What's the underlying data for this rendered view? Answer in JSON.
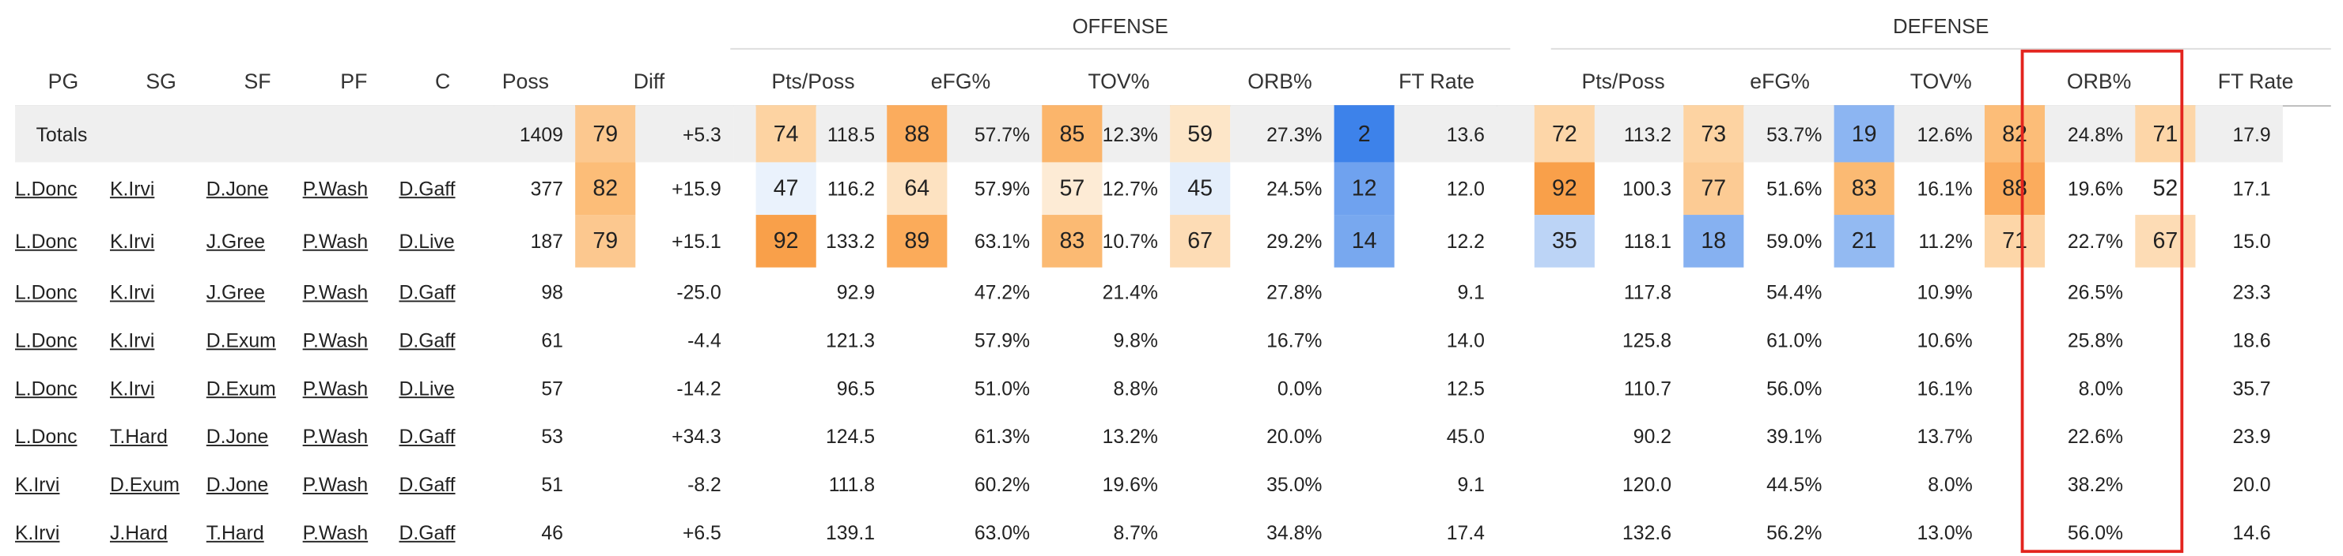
{
  "groups": {
    "offense": "OFFENSE",
    "defense": "DEFENSE"
  },
  "headers": [
    "PG",
    "SG",
    "SF",
    "PF",
    "C",
    "Poss",
    "Diff",
    "Pts/Poss",
    "eFG%",
    "TOV%",
    "ORB%",
    "FT Rate",
    "Pts/Poss",
    "eFG%",
    "TOV%",
    "ORB%",
    "FT Rate"
  ],
  "totals": {
    "label": "Totals",
    "poss": "1409",
    "diff": {
      "pct": "79",
      "val": "+5.3",
      "color": "#fcc88f"
    },
    "off": [
      {
        "pct": "74",
        "val": "118.5",
        "color": "#fdd3a2"
      },
      {
        "pct": "88",
        "val": "57.7%",
        "color": "#fbac5d"
      },
      {
        "pct": "85",
        "val": "12.3%",
        "color": "#fbb56b"
      },
      {
        "pct": "59",
        "val": "27.3%",
        "color": "#fde6c8"
      },
      {
        "pct": "2",
        "val": "13.6",
        "color": "#3d82ea"
      }
    ],
    "def": [
      {
        "pct": "72",
        "val": "113.2",
        "color": "#fdd6a8"
      },
      {
        "pct": "73",
        "val": "53.7%",
        "color": "#fdd3a2"
      },
      {
        "pct": "19",
        "val": "12.6%",
        "color": "#8cb5f2"
      },
      {
        "pct": "82",
        "val": "24.8%",
        "color": "#fcbd78"
      },
      {
        "pct": "71",
        "val": "17.9",
        "color": "#fdd6a8"
      }
    ]
  },
  "rows": [
    {
      "pg": "L.Donc",
      "sg": "K.Irvi",
      "sf": "D.Jone",
      "pf": "P.Wash",
      "c": "D.Gaff",
      "poss": "377",
      "diff": {
        "pct": "82",
        "val": "+15.9",
        "color": "#fcbd78"
      },
      "off": [
        {
          "pct": "47",
          "val": "116.2",
          "color": "#eaf2fc"
        },
        {
          "pct": "64",
          "val": "57.9%",
          "color": "#fde2c1"
        },
        {
          "pct": "57",
          "val": "12.7%",
          "color": "#fdebd5"
        },
        {
          "pct": "45",
          "val": "24.5%",
          "color": "#e4eefb"
        },
        {
          "pct": "12",
          "val": "12.0",
          "color": "#6fa2ef"
        }
      ],
      "def": [
        {
          "pct": "92",
          "val": "100.3",
          "color": "#f9a04a"
        },
        {
          "pct": "77",
          "val": "51.6%",
          "color": "#fccb94"
        },
        {
          "pct": "83",
          "val": "16.1%",
          "color": "#fbba73"
        },
        {
          "pct": "88",
          "val": "19.6%",
          "color": "#fbac5d"
        },
        {
          "pct": "52",
          "val": "17.1",
          "color": "#ffffff"
        }
      ]
    },
    {
      "pg": "L.Donc",
      "sg": "K.Irvi",
      "sf": "J.Gree",
      "pf": "P.Wash",
      "c": "D.Live",
      "poss": "187",
      "diff": {
        "pct": "79",
        "val": "+15.1",
        "color": "#fcc88f"
      },
      "off": [
        {
          "pct": "92",
          "val": "133.2",
          "color": "#f9a04a"
        },
        {
          "pct": "89",
          "val": "63.1%",
          "color": "#fbab5a"
        },
        {
          "pct": "83",
          "val": "10.7%",
          "color": "#fbba73"
        },
        {
          "pct": "67",
          "val": "29.2%",
          "color": "#fddcb5"
        },
        {
          "pct": "14",
          "val": "12.2",
          "color": "#78a8ef"
        }
      ],
      "def": [
        {
          "pct": "35",
          "val": "118.1",
          "color": "#bcd4f6"
        },
        {
          "pct": "18",
          "val": "59.0%",
          "color": "#86b1f1"
        },
        {
          "pct": "21",
          "val": "11.2%",
          "color": "#93baf2"
        },
        {
          "pct": "71",
          "val": "22.7%",
          "color": "#fdd6a8"
        },
        {
          "pct": "67",
          "val": "15.0",
          "color": "#fddcb5"
        }
      ]
    },
    {
      "pg": "L.Donc",
      "sg": "K.Irvi",
      "sf": "J.Gree",
      "pf": "P.Wash",
      "c": "D.Gaff",
      "poss": "98",
      "diff": "-25.0",
      "off": [
        "92.9",
        "47.2%",
        "21.4%",
        "27.8%",
        "9.1"
      ],
      "def": [
        "117.8",
        "54.4%",
        "10.9%",
        "26.5%",
        "23.3"
      ]
    },
    {
      "pg": "L.Donc",
      "sg": "K.Irvi",
      "sf": "D.Exum",
      "pf": "P.Wash",
      "c": "D.Gaff",
      "poss": "61",
      "diff": "-4.4",
      "off": [
        "121.3",
        "57.9%",
        "9.8%",
        "16.7%",
        "14.0"
      ],
      "def": [
        "125.8",
        "61.0%",
        "10.6%",
        "25.8%",
        "18.6"
      ]
    },
    {
      "pg": "L.Donc",
      "sg": "K.Irvi",
      "sf": "D.Exum",
      "pf": "P.Wash",
      "c": "D.Live",
      "poss": "57",
      "diff": "-14.2",
      "off": [
        "96.5",
        "51.0%",
        "8.8%",
        "0.0%",
        "12.5"
      ],
      "def": [
        "110.7",
        "56.0%",
        "16.1%",
        "8.0%",
        "35.7"
      ]
    },
    {
      "pg": "L.Donc",
      "sg": "T.Hard",
      "sf": "D.Jone",
      "pf": "P.Wash",
      "c": "D.Gaff",
      "poss": "53",
      "diff": "+34.3",
      "off": [
        "124.5",
        "61.3%",
        "13.2%",
        "20.0%",
        "45.0"
      ],
      "def": [
        "90.2",
        "39.1%",
        "13.7%",
        "22.6%",
        "23.9"
      ]
    },
    {
      "pg": "K.Irvi",
      "sg": "D.Exum",
      "sf": "D.Jone",
      "pf": "P.Wash",
      "c": "D.Gaff",
      "poss": "51",
      "diff": "-8.2",
      "off": [
        "111.8",
        "60.2%",
        "19.6%",
        "35.0%",
        "9.1"
      ],
      "def": [
        "120.0",
        "44.5%",
        "8.0%",
        "38.2%",
        "20.0"
      ]
    },
    {
      "pg": "K.Irvi",
      "sg": "J.Hard",
      "sf": "T.Hard",
      "pf": "P.Wash",
      "c": "D.Gaff",
      "poss": "46",
      "diff": "+6.5",
      "off": [
        "139.1",
        "63.0%",
        "8.7%",
        "34.8%",
        "17.4"
      ],
      "def": [
        "132.6",
        "56.2%",
        "13.0%",
        "56.0%",
        "14.6"
      ]
    }
  ],
  "highlight_color": "#e3241e"
}
